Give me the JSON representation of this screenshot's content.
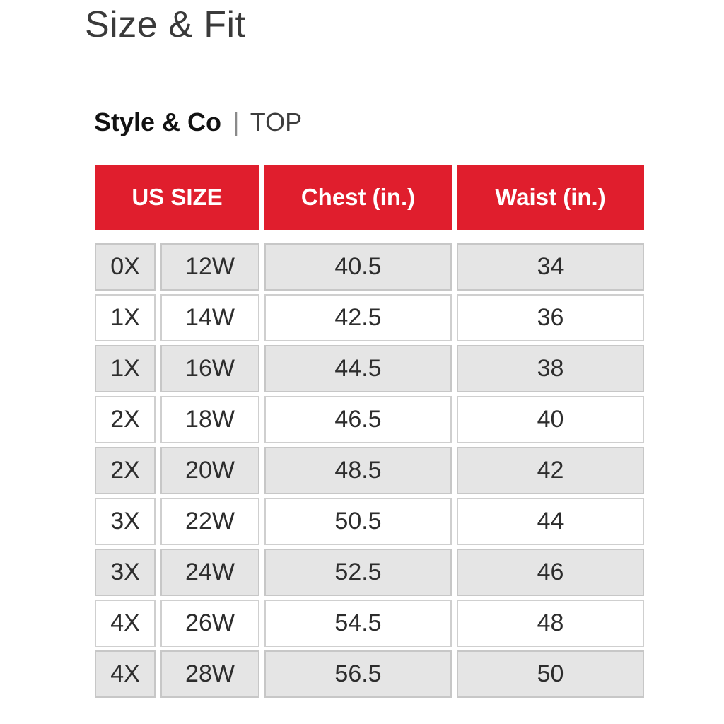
{
  "page": {
    "title": "Size & Fit",
    "brand": "Style & Co",
    "separator": "|",
    "category": "TOP"
  },
  "size_chart": {
    "columns": [
      "US SIZE",
      "Chest (in.)",
      "Waist (in.)"
    ],
    "rows": [
      [
        "0X",
        "12W",
        "40.5",
        "34"
      ],
      [
        "1X",
        "14W",
        "42.5",
        "36"
      ],
      [
        "1X",
        "16W",
        "44.5",
        "38"
      ],
      [
        "2X",
        "18W",
        "46.5",
        "40"
      ],
      [
        "2X",
        "20W",
        "48.5",
        "42"
      ],
      [
        "3X",
        "22W",
        "50.5",
        "44"
      ],
      [
        "3X",
        "24W",
        "52.5",
        "46"
      ],
      [
        "4X",
        "26W",
        "54.5",
        "48"
      ],
      [
        "4X",
        "28W",
        "56.5",
        "50"
      ]
    ]
  },
  "colors": {
    "header_bg": "#e01e2d",
    "header_text": "#ffffff",
    "alt_row_bg": "#e5e5e5",
    "row_bg": "#ffffff",
    "border": "#cfcfcf"
  }
}
